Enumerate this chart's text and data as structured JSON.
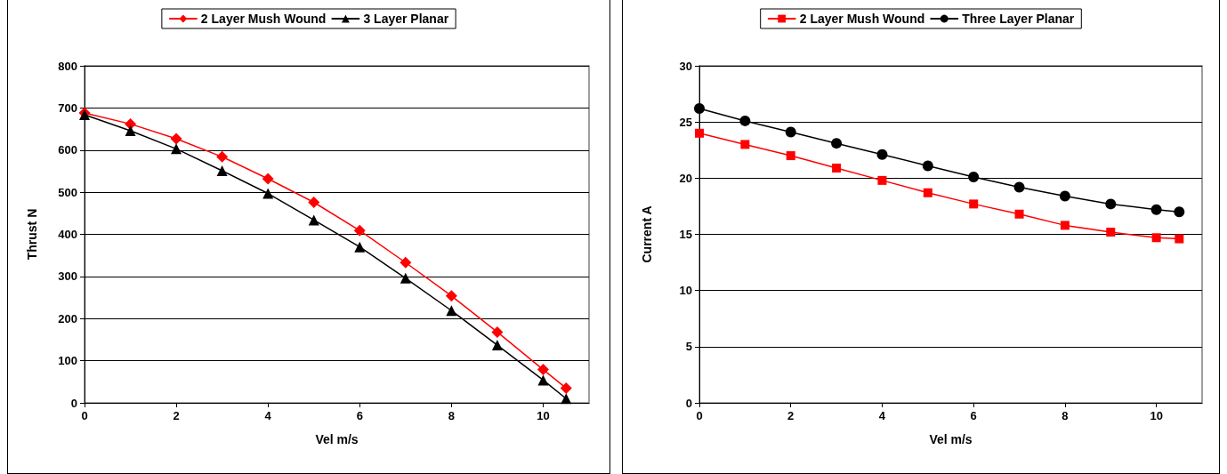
{
  "chart_data": [
    {
      "type": "line",
      "xlabel": "Vel m/s",
      "ylabel": "Thrust N",
      "x": [
        0,
        1,
        2,
        3,
        4,
        5,
        6,
        7,
        8,
        9,
        10,
        10.5
      ],
      "xlim": [
        0,
        11
      ],
      "xticks": [
        0,
        2,
        4,
        6,
        8,
        10
      ],
      "ylim": [
        0,
        800
      ],
      "yticks": [
        0,
        100,
        200,
        300,
        400,
        500,
        600,
        700,
        800
      ],
      "grid": "y",
      "legend": "top",
      "line_style": "solid",
      "series": [
        {
          "name": "2 Layer Mush Wound",
          "color": "#ff0000",
          "marker": "diamond",
          "values": [
            688,
            662,
            627,
            584,
            532,
            476,
            409,
            333,
            254,
            168,
            79,
            35
          ]
        },
        {
          "name": "3 Layer Planar",
          "color": "#000000",
          "marker": "triangle",
          "values": [
            684,
            646,
            603,
            551,
            497,
            434,
            370,
            296,
            219,
            137,
            54,
            10
          ]
        }
      ]
    },
    {
      "type": "line",
      "xlabel": "Vel m/s",
      "ylabel": "Current A",
      "x": [
        0,
        1,
        2,
        3,
        4,
        5,
        6,
        7,
        8,
        9,
        10,
        10.5
      ],
      "xlim": [
        0,
        11
      ],
      "xticks": [
        0,
        2,
        4,
        6,
        8,
        10
      ],
      "ylim": [
        0,
        30
      ],
      "yticks": [
        0,
        5,
        10,
        15,
        20,
        25,
        30
      ],
      "grid": "y",
      "legend": "top",
      "line_style": "solid",
      "series": [
        {
          "name": "2 Layer Mush Wound",
          "color": "#ff0000",
          "marker": "square",
          "values": [
            24.0,
            23.0,
            22.0,
            20.9,
            19.8,
            18.7,
            17.7,
            16.8,
            15.8,
            15.2,
            14.7,
            14.6
          ]
        },
        {
          "name": "Three Layer Planar",
          "color": "#000000",
          "marker": "circle",
          "values": [
            26.2,
            25.1,
            24.1,
            23.1,
            22.1,
            21.1,
            20.1,
            19.2,
            18.4,
            17.7,
            17.2,
            17.0
          ]
        }
      ]
    }
  ]
}
